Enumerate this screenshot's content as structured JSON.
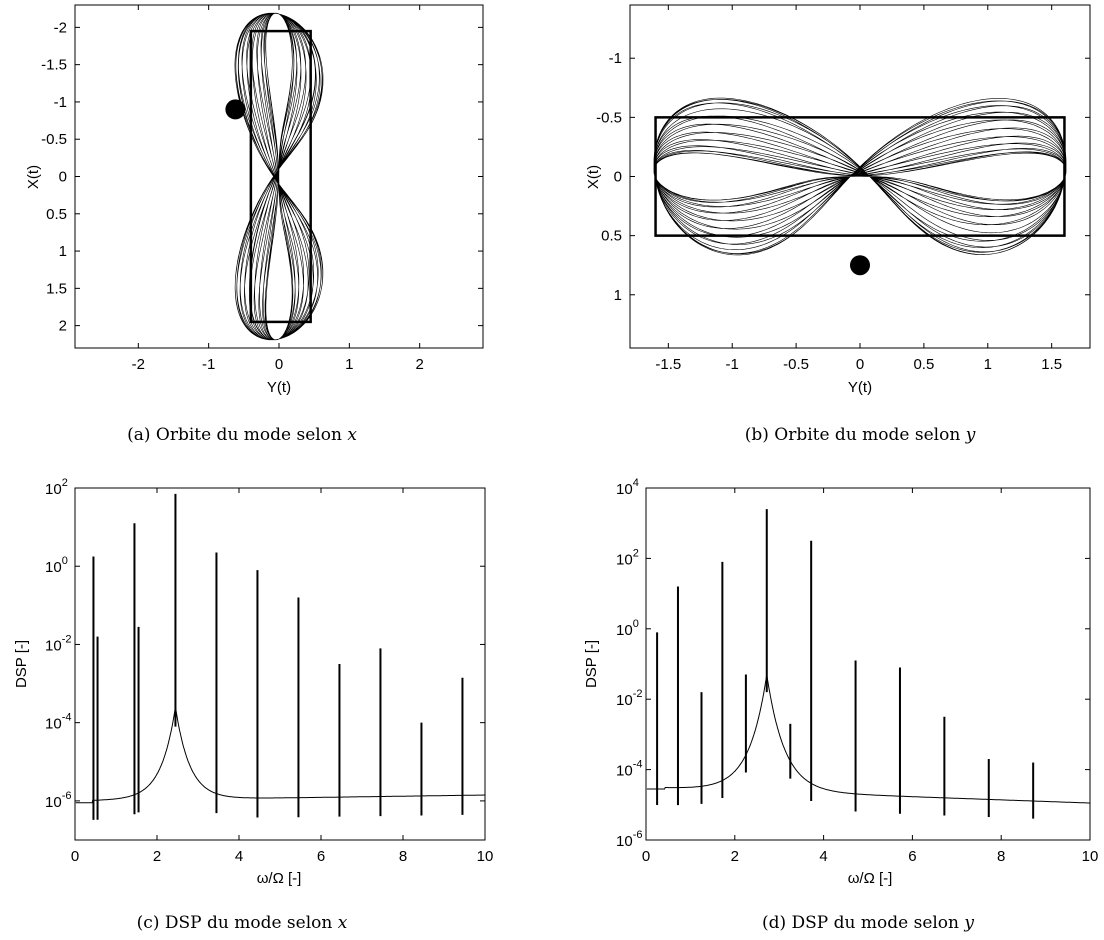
{
  "chart_data": [
    {
      "id": "a",
      "type": "line",
      "caption": "(a) Orbite du mode selon x",
      "caption_prefix": "(a) Orbite du mode selon ",
      "caption_var": "x",
      "xlabel": "Y(t)",
      "ylabel": "X(t)",
      "xlim": [
        -2.9,
        2.9
      ],
      "ylim": [
        -2.3,
        2.3
      ],
      "y_reversed": true,
      "xticks": [
        -2,
        -1,
        0,
        1,
        2
      ],
      "xticklabels": [
        "-2",
        "-1",
        "0",
        "1",
        "2"
      ],
      "yticks": [
        -2,
        -1.5,
        -1,
        -0.5,
        0,
        0.5,
        1,
        1.5,
        2
      ],
      "yticklabels": [
        "-2",
        "-1.5",
        "-1",
        "-0.5",
        "0",
        "0.5",
        "1",
        "1.5",
        "2"
      ],
      "grid": false,
      "orbit": {
        "y_amplitude": 0.68,
        "x_amplitude": 2.2,
        "box_y": [
          -0.4,
          0.45
        ],
        "box_x": [
          -1.95,
          1.95
        ]
      },
      "marker": {
        "y": -0.62,
        "x": -0.9
      }
    },
    {
      "id": "b",
      "type": "line",
      "caption": "(b) Orbite du mode selon y",
      "caption_prefix": "(b) Orbite du mode selon ",
      "caption_var": "y",
      "xlabel": "Y(t)",
      "ylabel": "X(t)",
      "xlim": [
        -1.8,
        1.8
      ],
      "ylim": [
        -1.45,
        1.45
      ],
      "y_reversed": true,
      "xticks": [
        -1.5,
        -1,
        -0.5,
        0,
        0.5,
        1,
        1.5
      ],
      "xticklabels": [
        "-1.5",
        "-1",
        "-0.5",
        "0",
        "0.5",
        "1",
        "1.5"
      ],
      "yticks": [
        -1,
        -0.5,
        0,
        0.5,
        1
      ],
      "yticklabels": [
        "-1",
        "-0.5",
        "0",
        "0.5",
        "1"
      ],
      "grid": false,
      "orbit": {
        "y_amplitude": 1.62,
        "x_amplitude": 0.72,
        "box_y": [
          -1.6,
          1.6
        ],
        "box_x": [
          -0.5,
          0.5
        ]
      },
      "marker": {
        "y": 0.0,
        "x": 0.75
      }
    },
    {
      "id": "c",
      "type": "line",
      "caption": "(c) DSP du mode selon x",
      "caption_prefix": "(c) DSP du mode selon ",
      "caption_var": "x",
      "xlabel": "ω/Ω [-]",
      "ylabel": "DSP [-]",
      "y_scale": "log",
      "xlim": [
        0,
        10
      ],
      "ylim_exp": [
        -7,
        2
      ],
      "xticks": [
        0,
        2,
        4,
        6,
        8,
        10
      ],
      "xticklabels": [
        "0",
        "2",
        "4",
        "6",
        "8",
        "10"
      ],
      "yticks_exp": [
        -6,
        -4,
        -2,
        0,
        2
      ],
      "yticklabels_exp": [
        "-6",
        "-4",
        "-2",
        "0",
        "2"
      ],
      "grid": false,
      "spectrum": {
        "resonance": {
          "x": 2.45,
          "peak_exp": -3.6,
          "width": 0.35
        },
        "floor_start_exp": -6.0,
        "floor_end_exp": -5.85,
        "peaks": [
          {
            "x": 0.45,
            "exp": 0.25
          },
          {
            "x": 0.55,
            "exp": -1.8
          },
          {
            "x": 1.45,
            "exp": 1.1
          },
          {
            "x": 1.55,
            "exp": -1.55
          },
          {
            "x": 2.45,
            "exp": 1.85
          },
          {
            "x": 3.45,
            "exp": 0.35
          },
          {
            "x": 4.45,
            "exp": -0.1
          },
          {
            "x": 5.45,
            "exp": -0.8
          },
          {
            "x": 6.45,
            "exp": -2.5
          },
          {
            "x": 7.45,
            "exp": -2.1
          },
          {
            "x": 8.45,
            "exp": -4.0
          },
          {
            "x": 9.45,
            "exp": -2.85
          }
        ]
      }
    },
    {
      "id": "d",
      "type": "line",
      "caption": "(d) DSP du mode selon y",
      "caption_prefix": "(d) DSP du mode selon ",
      "caption_var": "y",
      "xlabel": "ω/Ω [-]",
      "ylabel": "DSP [-]",
      "y_scale": "log",
      "xlim": [
        0,
        10
      ],
      "ylim_exp": [
        -6,
        4
      ],
      "xticks": [
        0,
        2,
        4,
        6,
        8,
        10
      ],
      "xticklabels": [
        "0",
        "2",
        "4",
        "6",
        "8",
        "10"
      ],
      "yticks_exp": [
        -6,
        -4,
        -2,
        0,
        2,
        4
      ],
      "yticklabels_exp": [
        "-6",
        "-4",
        "-2",
        "0",
        "2",
        "4"
      ],
      "grid": false,
      "spectrum": {
        "resonance": {
          "x": 2.72,
          "peak_exp": -1.3,
          "width": 0.4
        },
        "floor_start_exp": -4.5,
        "floor_end_exp": -4.95,
        "peaks": [
          {
            "x": 0.25,
            "exp": -0.1
          },
          {
            "x": 0.72,
            "exp": 1.2
          },
          {
            "x": 1.25,
            "exp": -1.8
          },
          {
            "x": 1.72,
            "exp": 1.9
          },
          {
            "x": 2.25,
            "exp": -1.3
          },
          {
            "x": 2.72,
            "exp": 3.4
          },
          {
            "x": 3.25,
            "exp": -2.7
          },
          {
            "x": 3.72,
            "exp": 2.5
          },
          {
            "x": 4.72,
            "exp": -0.9
          },
          {
            "x": 5.72,
            "exp": -1.1
          },
          {
            "x": 6.72,
            "exp": -2.5
          },
          {
            "x": 7.72,
            "exp": -3.7
          },
          {
            "x": 8.72,
            "exp": -3.8
          }
        ]
      }
    }
  ]
}
